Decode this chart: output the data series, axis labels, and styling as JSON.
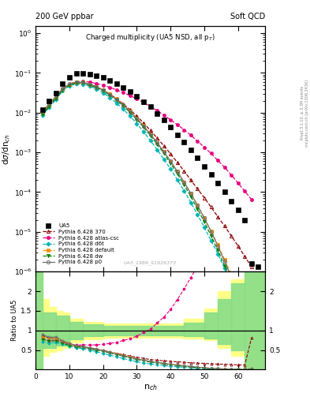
{
  "UA5_x": [
    2,
    4,
    6,
    8,
    10,
    12,
    14,
    16,
    18,
    20,
    22,
    24,
    26,
    28,
    30,
    32,
    34,
    36,
    38,
    40,
    42,
    44,
    46,
    48,
    50,
    52,
    54,
    56,
    58,
    60,
    62,
    64,
    66
  ],
  "UA5_y": [
    0.012,
    0.02,
    0.031,
    0.055,
    0.079,
    0.096,
    0.098,
    0.094,
    0.086,
    0.076,
    0.065,
    0.054,
    0.043,
    0.034,
    0.026,
    0.019,
    0.014,
    0.0095,
    0.0065,
    0.0043,
    0.0028,
    0.0018,
    0.00115,
    0.00072,
    0.00045,
    0.00028,
    0.00017,
    0.0001,
    6e-05,
    3.6e-05,
    2e-05,
    1.6e-06,
    1.3e-06
  ],
  "p370_x": [
    2,
    4,
    6,
    8,
    10,
    12,
    14,
    16,
    18,
    20,
    22,
    24,
    26,
    28,
    30,
    32,
    34,
    36,
    38,
    40,
    42,
    44,
    46,
    48,
    50,
    52,
    54,
    56,
    58,
    60,
    62,
    64
  ],
  "p370_y": [
    0.0105,
    0.016,
    0.025,
    0.039,
    0.051,
    0.057,
    0.0565,
    0.051,
    0.0445,
    0.037,
    0.0295,
    0.0225,
    0.0165,
    0.0118,
    0.0082,
    0.0055,
    0.0036,
    0.0023,
    0.00147,
    0.00092,
    0.00056,
    0.00034,
    0.0002,
    0.00012,
    7.2e-05,
    4.2e-05,
    2.4e-05,
    1.4e-05,
    7.9e-06,
    4.4e-06,
    2.4e-06,
    1.3e-06
  ],
  "atlas_x": [
    2,
    4,
    6,
    8,
    10,
    12,
    14,
    16,
    18,
    20,
    22,
    24,
    26,
    28,
    30,
    32,
    34,
    36,
    38,
    40,
    42,
    44,
    46,
    48,
    50,
    52,
    54,
    56,
    58,
    60,
    62,
    64
  ],
  "atlas_y": [
    0.0095,
    0.0148,
    0.0235,
    0.0385,
    0.052,
    0.06,
    0.062,
    0.059,
    0.0545,
    0.049,
    0.0435,
    0.0375,
    0.032,
    0.0268,
    0.0222,
    0.018,
    0.0144,
    0.0113,
    0.0087,
    0.0066,
    0.005,
    0.0037,
    0.0027,
    0.0019,
    0.00135,
    0.00094,
    0.00063,
    0.00042,
    0.00027,
    0.00017,
    0.000105,
    6.5e-05
  ],
  "d6t_x": [
    2,
    4,
    6,
    8,
    10,
    12,
    14,
    16,
    18,
    20,
    22,
    24,
    26,
    28,
    30,
    32,
    34,
    36,
    38,
    40,
    42,
    44,
    46,
    48,
    50,
    52,
    54,
    56,
    58,
    60,
    62
  ],
  "d6t_y": [
    0.0085,
    0.0135,
    0.0215,
    0.0355,
    0.0475,
    0.053,
    0.0525,
    0.047,
    0.0395,
    0.0315,
    0.024,
    0.0175,
    0.0122,
    0.0082,
    0.0053,
    0.0033,
    0.002,
    0.00118,
    0.00068,
    0.00038,
    0.000205,
    0.000108,
    5.5e-05,
    2.7e-05,
    1.3e-05,
    6e-06,
    2.8e-06,
    1.2e-06,
    5.2e-07,
    2.1e-07,
    8.2e-08
  ],
  "default_x": [
    2,
    4,
    6,
    8,
    10,
    12,
    14,
    16,
    18,
    20,
    22,
    24,
    26,
    28,
    30,
    32,
    34,
    36,
    38,
    40,
    42,
    44,
    46,
    48,
    50,
    52,
    54,
    56,
    58,
    60,
    62,
    64
  ],
  "default_y": [
    0.01,
    0.0158,
    0.0248,
    0.0395,
    0.0525,
    0.0585,
    0.058,
    0.0525,
    0.0455,
    0.0375,
    0.0295,
    0.0222,
    0.016,
    0.011,
    0.0073,
    0.0047,
    0.0029,
    0.00177,
    0.00104,
    0.000595,
    0.00033,
    0.000177,
    9.2e-05,
    4.62e-05,
    2.24e-05,
    1.05e-05,
    4.7e-06,
    2e-06,
    8.4e-07,
    3.4e-07,
    1.3e-07,
    5e-08
  ],
  "dw_x": [
    2,
    4,
    6,
    8,
    10,
    12,
    14,
    16,
    18,
    20,
    22,
    24,
    26,
    28,
    30,
    32,
    34,
    36,
    38,
    40,
    42,
    44,
    46,
    48,
    50,
    52,
    54,
    56,
    58,
    60,
    62,
    64
  ],
  "dw_y": [
    0.0092,
    0.0145,
    0.0228,
    0.0368,
    0.0492,
    0.0558,
    0.0555,
    0.05,
    0.043,
    0.0353,
    0.0275,
    0.0205,
    0.0147,
    0.0101,
    0.0067,
    0.0043,
    0.00268,
    0.00162,
    0.00094,
    0.00053,
    0.00029,
    0.000153,
    7.75e-05,
    3.78e-05,
    1.77e-05,
    7.9e-06,
    3.4e-06,
    1.4e-06,
    5.6e-07,
    2.1e-07,
    7.6e-08,
    2.6e-08
  ],
  "p0_x": [
    2,
    4,
    6,
    8,
    10,
    12,
    14,
    16,
    18,
    20,
    22,
    24,
    26,
    28,
    30,
    32,
    34,
    36,
    38,
    40,
    42,
    44,
    46,
    48,
    50,
    52,
    54,
    56,
    58,
    60,
    62,
    64
  ],
  "p0_y": [
    0.0108,
    0.0165,
    0.0258,
    0.0405,
    0.0532,
    0.059,
    0.0582,
    0.0525,
    0.0452,
    0.037,
    0.0288,
    0.0215,
    0.0154,
    0.0106,
    0.0071,
    0.0046,
    0.0029,
    0.00177,
    0.00104,
    0.000597,
    0.000333,
    0.000179,
    9.28e-05,
    4.62e-05,
    2.21e-05,
    1.01e-05,
    4.4e-06,
    1.8e-06,
    7.3e-07,
    2.8e-07,
    1e-07,
    3.7e-08
  ],
  "color_UA5": "#000000",
  "color_p370": "#8b0000",
  "color_atlas": "#e8007f",
  "color_d6t": "#00b4b4",
  "color_default": "#ff8c00",
  "color_dw": "#008000",
  "color_p0": "#707070",
  "ylim_main": [
    1e-06,
    1.5
  ],
  "xlim": [
    0,
    68
  ],
  "ylim_ratio": [
    0.0,
    2.5
  ],
  "ratio_yticks": [
    0.5,
    1.0,
    1.5,
    2.0
  ],
  "ratio_yticklabels": [
    "0.5",
    "1",
    "1.5",
    "2"
  ]
}
